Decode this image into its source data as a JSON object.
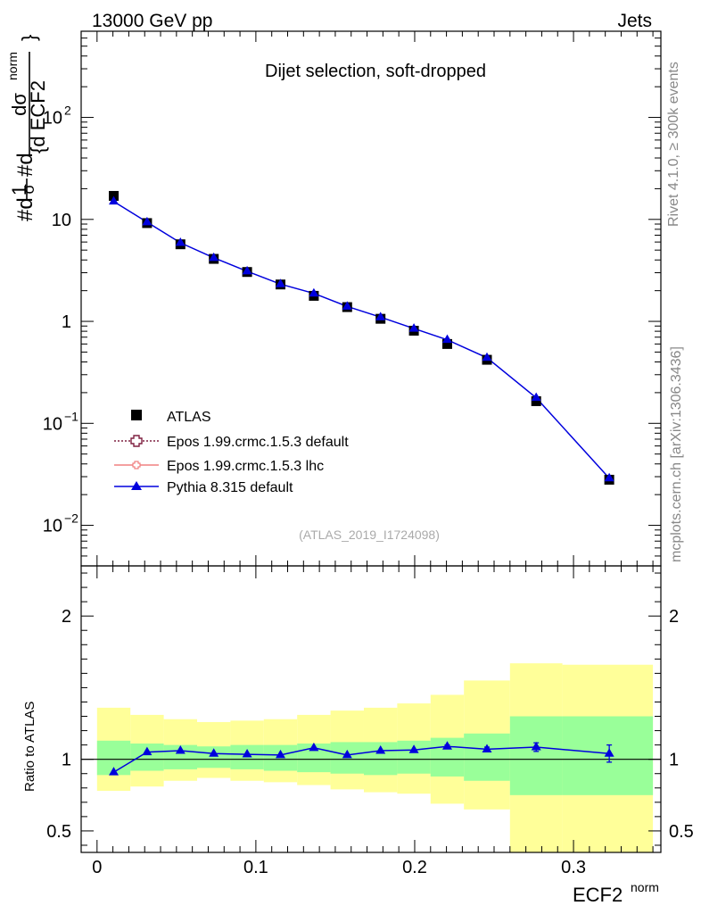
{
  "header": {
    "left": "13000 GeV pp",
    "right": "Jets",
    "side_top": "Rivet 4.1.0, ≥ 300k events",
    "side_bottom": "mcplots.cern.ch [arXiv:1306.3436]"
  },
  "chart_data": [
    {
      "type": "scatter",
      "panel": "main",
      "title": "Dijet selection, soft-dropped",
      "watermark": "(ATLAS_2019_I1724098)",
      "ylabel": "#d 1/σ #d dσ/{d ECF2^norm}",
      "ylabel_parts": {
        "prefix": "#d",
        "one": "1",
        "sigma": "σ",
        "d": "#d",
        "dsigma": "dσ",
        "denom": "{d ECF2",
        "sup": "norm",
        "brace": "}"
      },
      "yscale": "log",
      "ylim": [
        0.004,
        700
      ],
      "yticks": [
        {
          "value": 0.01,
          "base": "10",
          "exp": "−2"
        },
        {
          "value": 0.1,
          "base": "10",
          "exp": "−1"
        },
        {
          "value": 1,
          "base": "1",
          "exp": ""
        },
        {
          "value": 10,
          "base": "10",
          "exp": ""
        },
        {
          "value": 100,
          "base": "10",
          "exp": "2"
        }
      ],
      "xlim": [
        -0.01,
        0.355
      ],
      "legend_position": "bottom-left",
      "legend": [
        {
          "label": "ATLAS",
          "marker": "square",
          "color": "#000000"
        },
        {
          "label": "Epos 1.99.crmc.1.5.3 default",
          "marker": "open-cross",
          "color": "#7f2040",
          "dash": "dotted"
        },
        {
          "label": "Epos 1.99.crmc.1.5.3 lhc",
          "marker": "open-cross",
          "color": "#f08080",
          "dash": "solid"
        },
        {
          "label": "Pythia 8.315 default",
          "marker": "triangle",
          "color": "#0000dd",
          "dash": "solid"
        }
      ],
      "x": [
        0.0105,
        0.0315,
        0.0525,
        0.0735,
        0.0945,
        0.1155,
        0.1365,
        0.1575,
        0.1785,
        0.1995,
        0.2205,
        0.2455,
        0.2765,
        0.3225
      ],
      "series": [
        {
          "name": "ATLAS",
          "values": [
            17.0,
            9.2,
            5.7,
            4.1,
            3.05,
            2.3,
            1.78,
            1.38,
            1.06,
            0.81,
            0.6,
            0.42,
            0.165,
            0.028
          ]
        },
        {
          "name": "Pythia 8.315 default",
          "values": [
            15.0,
            9.4,
            5.9,
            4.2,
            3.1,
            2.32,
            1.88,
            1.4,
            1.1,
            0.85,
            0.66,
            0.44,
            0.178,
            0.029
          ]
        }
      ]
    },
    {
      "type": "line",
      "panel": "ratio",
      "ylabel": "Ratio to ATLAS",
      "xlabel": "ECF2",
      "xlabel_sup": "norm",
      "ylim": [
        0.35,
        2.35
      ],
      "yticks": [
        0.5,
        1,
        2
      ],
      "ytick_labels": [
        "0.5",
        "1",
        "2"
      ],
      "xlim": [
        -0.01,
        0.355
      ],
      "xticks": [
        0,
        0.1,
        0.2,
        0.3
      ],
      "xtick_labels": [
        "0",
        "0.1",
        "0.2",
        "0.3"
      ],
      "bins": [
        [
          0.0,
          0.021
        ],
        [
          0.021,
          0.042
        ],
        [
          0.042,
          0.063
        ],
        [
          0.063,
          0.084
        ],
        [
          0.084,
          0.105
        ],
        [
          0.105,
          0.126
        ],
        [
          0.126,
          0.147
        ],
        [
          0.147,
          0.168
        ],
        [
          0.168,
          0.189
        ],
        [
          0.189,
          0.21
        ],
        [
          0.21,
          0.231
        ],
        [
          0.231,
          0.26
        ],
        [
          0.26,
          0.293
        ],
        [
          0.293,
          0.35
        ]
      ],
      "band_inner": {
        "color": "#99ff99",
        "lo": [
          0.89,
          0.92,
          0.93,
          0.94,
          0.93,
          0.92,
          0.91,
          0.9,
          0.89,
          0.9,
          0.88,
          0.85,
          0.75,
          0.75
        ],
        "hi": [
          1.13,
          1.11,
          1.1,
          1.09,
          1.1,
          1.1,
          1.11,
          1.12,
          1.12,
          1.13,
          1.15,
          1.18,
          1.3,
          1.3
        ]
      },
      "band_outer": {
        "color": "#ffff99",
        "lo": [
          0.78,
          0.81,
          0.85,
          0.87,
          0.85,
          0.84,
          0.82,
          0.79,
          0.77,
          0.76,
          0.69,
          0.65,
          0.35,
          0.35
        ],
        "hi": [
          1.36,
          1.31,
          1.28,
          1.26,
          1.27,
          1.28,
          1.31,
          1.34,
          1.36,
          1.39,
          1.45,
          1.55,
          1.67,
          1.66
        ]
      },
      "x": [
        0.0105,
        0.0315,
        0.0525,
        0.0735,
        0.0945,
        0.1155,
        0.1365,
        0.1575,
        0.1785,
        0.1995,
        0.2205,
        0.2455,
        0.2765,
        0.3225
      ],
      "series": [
        {
          "name": "Pythia 8.315 default",
          "color": "#0000dd",
          "values": [
            0.91,
            1.05,
            1.06,
            1.04,
            1.035,
            1.03,
            1.08,
            1.03,
            1.06,
            1.065,
            1.09,
            1.07,
            1.085,
            1.04
          ],
          "errors": [
            0.0,
            0.0,
            0.0,
            0.0,
            0.0,
            0.0,
            0.0,
            0.0,
            0.0,
            0.0,
            0.01,
            0.015,
            0.03,
            0.06
          ]
        }
      ]
    }
  ]
}
